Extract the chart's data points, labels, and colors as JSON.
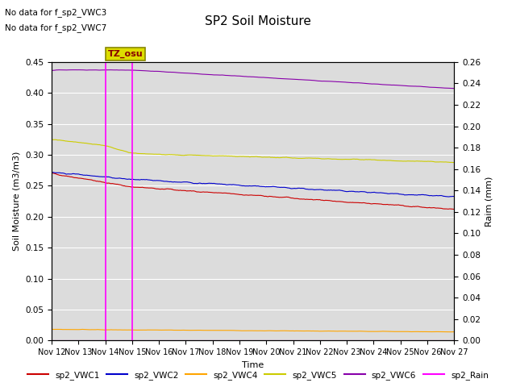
{
  "title": "SP2 Soil Moisture",
  "ylabel_left": "Soil Moisture (m3/m3)",
  "ylabel_right": "Raim (mm)",
  "xlabel": "Time",
  "no_data_text": [
    "No data for f_sp2_VWC3",
    "No data for f_sp2_VWC7"
  ],
  "tz_label": "TZ_osu",
  "ylim_left": [
    0.0,
    0.45
  ],
  "ylim_right": [
    0.0,
    0.26
  ],
  "yticks_left": [
    0.0,
    0.05,
    0.1,
    0.15,
    0.2,
    0.25,
    0.3,
    0.35,
    0.4,
    0.45
  ],
  "yticks_right": [
    0.0,
    0.02,
    0.04,
    0.06,
    0.08,
    0.1,
    0.12,
    0.14,
    0.16,
    0.18,
    0.2,
    0.22,
    0.24,
    0.26
  ],
  "vline_color": "#FF00FF",
  "bg_color": "#DCDCDC",
  "series": {
    "VWC1": {
      "color": "#CC0000",
      "label": "sp2_VWC1"
    },
    "VWC2": {
      "color": "#0000CC",
      "label": "sp2_VWC2"
    },
    "VWC4": {
      "color": "#FFA500",
      "label": "sp2_VWC4"
    },
    "VWC5": {
      "color": "#CCCC00",
      "label": "sp2_VWC5"
    },
    "VWC6": {
      "color": "#8800AA",
      "label": "sp2_VWC6"
    },
    "Rain": {
      "color": "#FF00FF",
      "label": "sp2_Rain"
    }
  },
  "n_days": 15,
  "start_day": 12,
  "vline_day1": 2,
  "vline_day2": 3
}
